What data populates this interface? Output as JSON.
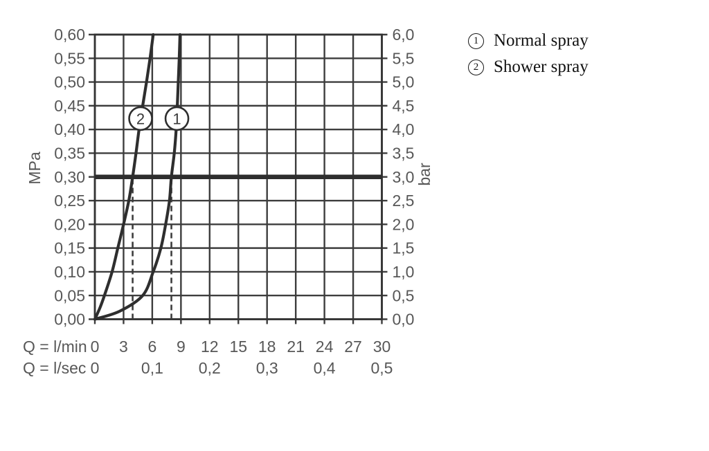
{
  "page": {
    "background": "#ffffff"
  },
  "colors": {
    "grid": "#3d3d3d",
    "axis": "#333333",
    "curve": "#2e2e2e",
    "reference_line": "#2e2e2e",
    "dashed": "#3d3d3d",
    "tick_text": "#575757",
    "unit_text": "#575757",
    "marker_text": "#3a3a3a",
    "marker_fill": "#ffffff",
    "legend_text": "#121212",
    "background": "#ffffff"
  },
  "legend": {
    "items": [
      {
        "symbol": "1",
        "label": "Normal spray"
      },
      {
        "symbol": "2",
        "label": "Shower spray"
      }
    ]
  },
  "chart_data": {
    "type": "line",
    "grid": true,
    "legend_position": "top-right",
    "x_axis": {
      "primary_label": "Q = l/min",
      "primary_ticks": [
        0,
        3,
        6,
        9,
        12,
        15,
        18,
        21,
        24,
        27,
        30
      ],
      "primary_tick_texts": [
        "0",
        "3",
        "6",
        "9",
        "12",
        "15",
        "18",
        "21",
        "24",
        "27",
        "30"
      ],
      "secondary_label": "Q = l/sec",
      "secondary_ticks": [
        {
          "at_lmin": 0,
          "text": "0"
        },
        {
          "at_lmin": 6,
          "text": "0,1"
        },
        {
          "at_lmin": 12,
          "text": "0,2"
        },
        {
          "at_lmin": 18,
          "text": "0,3"
        },
        {
          "at_lmin": 24,
          "text": "0,4"
        },
        {
          "at_lmin": 30,
          "text": "0,5"
        }
      ],
      "min": 0,
      "max": 30
    },
    "y_axis_left": {
      "label": "MPa",
      "min": 0,
      "max": 0.6,
      "tick_step": 0.05,
      "tick_texts": [
        "0,00",
        "0,05",
        "0,10",
        "0,15",
        "0,20",
        "0,25",
        "0,30",
        "0,35",
        "0,40",
        "0,45",
        "0,50",
        "0,55",
        "0,60"
      ]
    },
    "y_axis_right": {
      "label": "bar",
      "min": 0,
      "max": 6,
      "tick_step": 0.5,
      "tick_texts": [
        "0,0",
        "0,5",
        "1,0",
        "1,5",
        "2,0",
        "2,5",
        "3,0",
        "3,5",
        "4,0",
        "4,5",
        "5,0",
        "5,5",
        "6,0"
      ]
    },
    "reference_line": {
      "mpa": 0.3,
      "bar": 3.0
    },
    "dashed_lines_lmin": [
      3.95,
      8.0
    ],
    "series": [
      {
        "marker": "1",
        "name": "Normal spray",
        "flow_at_3bar_lmin": 8.0,
        "marker_pos": {
          "lmin": 8.58,
          "mpa": 0.423
        },
        "points": [
          [
            0,
            0
          ],
          [
            2.6,
            0.017
          ],
          [
            5.0,
            0.05
          ],
          [
            6.1,
            0.1
          ],
          [
            6.9,
            0.15
          ],
          [
            7.4,
            0.2
          ],
          [
            7.8,
            0.25
          ],
          [
            8.0,
            0.3
          ],
          [
            8.3,
            0.35
          ],
          [
            8.5,
            0.4
          ],
          [
            8.62,
            0.45
          ],
          [
            8.72,
            0.5
          ],
          [
            8.82,
            0.55
          ],
          [
            8.9,
            0.6
          ]
        ]
      },
      {
        "marker": "2",
        "name": "Shower spray",
        "flow_at_3bar_lmin": 3.95,
        "marker_pos": {
          "lmin": 4.78,
          "mpa": 0.423
        },
        "points": [
          [
            0,
            0
          ],
          [
            0.55,
            0.025
          ],
          [
            1.0,
            0.05
          ],
          [
            1.8,
            0.1
          ],
          [
            2.4,
            0.15
          ],
          [
            3.0,
            0.2
          ],
          [
            3.55,
            0.25
          ],
          [
            3.95,
            0.3
          ],
          [
            4.3,
            0.35
          ],
          [
            4.62,
            0.4
          ],
          [
            5.0,
            0.45
          ],
          [
            5.4,
            0.5
          ],
          [
            5.77,
            0.55
          ],
          [
            6.1,
            0.6
          ]
        ]
      }
    ]
  }
}
